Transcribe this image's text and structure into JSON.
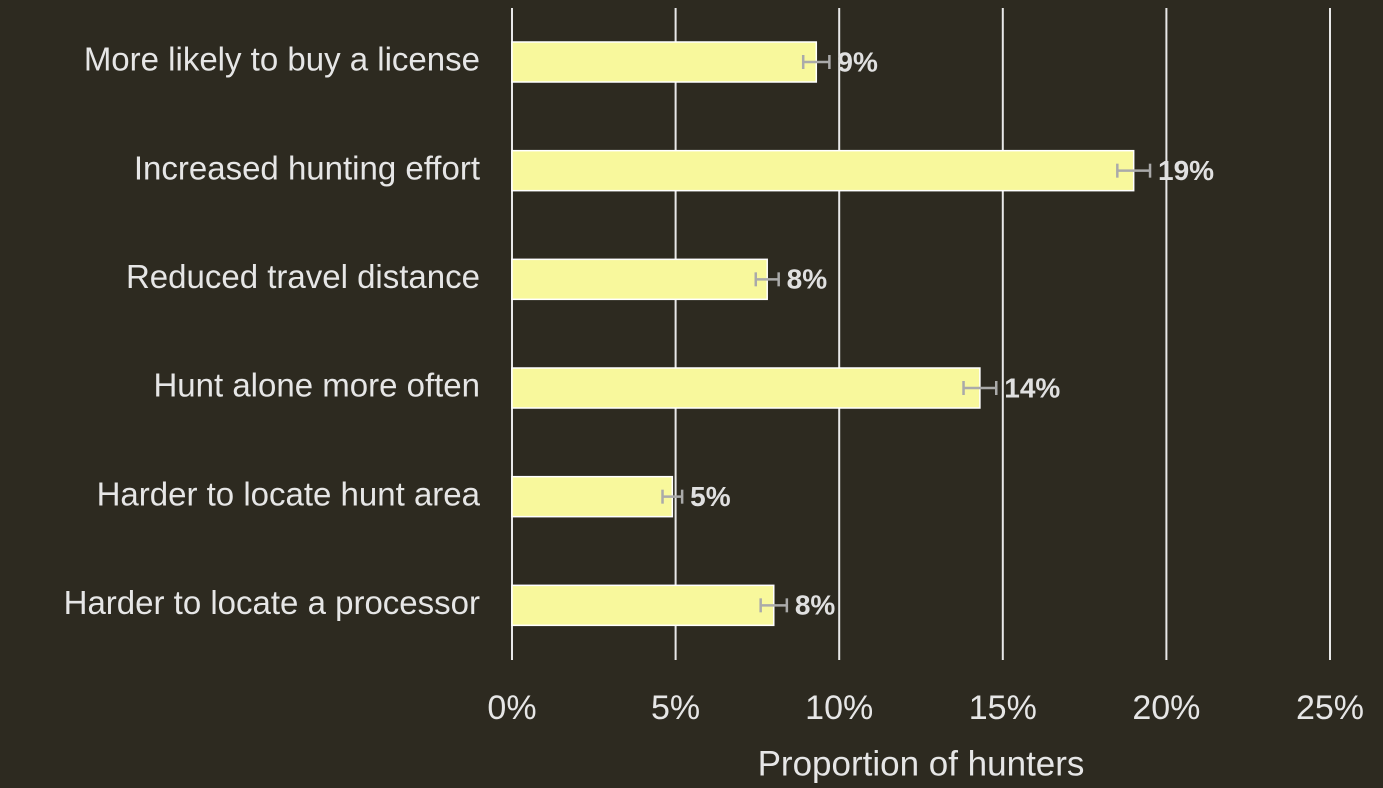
{
  "chart_data": {
    "type": "bar",
    "orientation": "horizontal",
    "xlabel": "Proportion of hunters",
    "categories": [
      "More likely to buy a license",
      "Increased hunting effort",
      "Reduced travel distance",
      "Hunt alone more often",
      "Harder to locate hunt area",
      "Harder to locate a processor"
    ],
    "values": [
      9.3,
      19.0,
      7.8,
      14.3,
      4.9,
      8.0
    ],
    "errors": [
      0.4,
      0.5,
      0.35,
      0.5,
      0.3,
      0.4
    ],
    "value_labels": [
      "9%",
      "19%",
      "8%",
      "14%",
      "5%",
      "8%"
    ],
    "color": "#f8f89c",
    "error_color": "#aaaaaa",
    "xlim": [
      0,
      25
    ],
    "xticks": [
      {
        "value": 0,
        "label": "0%"
      },
      {
        "value": 5,
        "label": "5%"
      },
      {
        "value": 10,
        "label": "10%"
      },
      {
        "value": 15,
        "label": "15%"
      },
      {
        "value": 20,
        "label": "20%"
      },
      {
        "value": 25,
        "label": "25%"
      }
    ],
    "grid": true
  }
}
